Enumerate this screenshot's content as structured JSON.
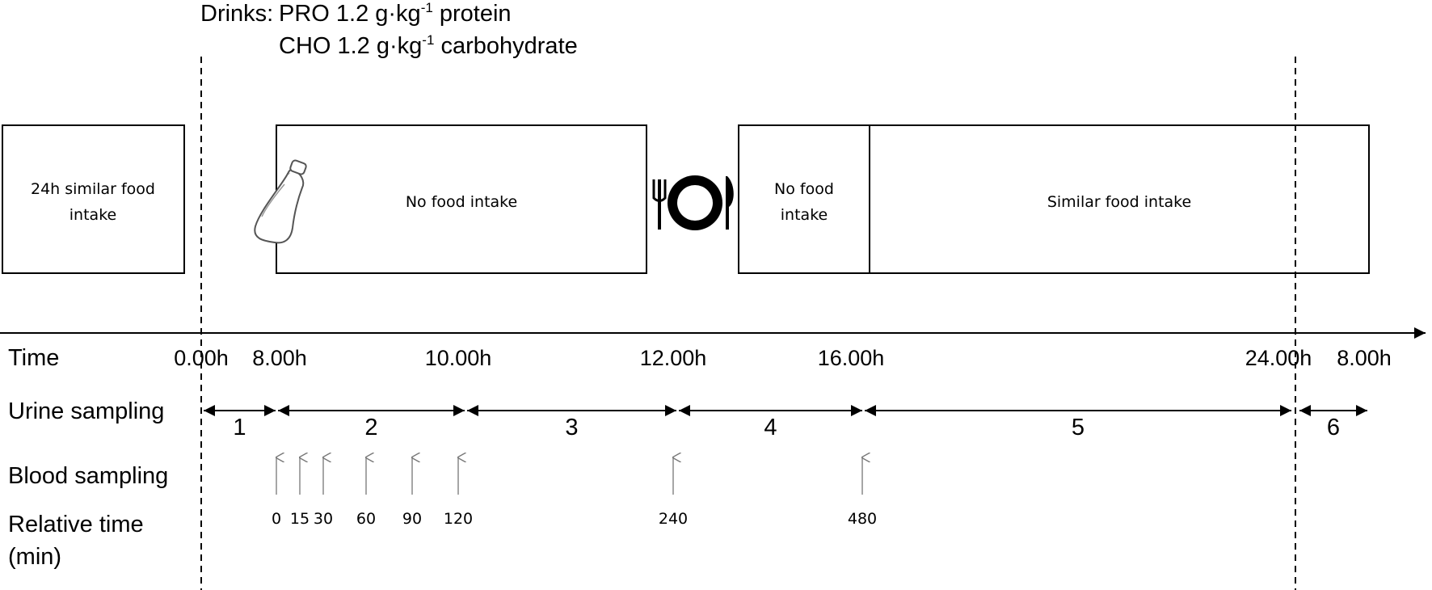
{
  "drinks": {
    "label": "Drinks:",
    "pro_text": "PRO 1.2 g·kg",
    "pro_sup": "-1",
    "pro_tail": " protein",
    "cho_text": "CHO 1.2 g·kg",
    "cho_sup": "-1",
    "cho_tail": " carbohydrate"
  },
  "boxes": {
    "box1_line1": "24h similar food",
    "box1_line2": "intake",
    "box2": "No food intake",
    "box3_line1": "No food",
    "box3_line2": "intake",
    "box4": "Similar food intake"
  },
  "icons": {
    "bottle": "drink-bottle-icon",
    "meal": "plate-cutlery-icon"
  },
  "rows": {
    "time": "Time",
    "urine": "Urine sampling",
    "blood": "Blood sampling",
    "relative_line1": "Relative time",
    "relative_line2": "(min)"
  },
  "time_labels": [
    "0.00h",
    "8.00h",
    "10.00h",
    "12.00h",
    "16.00h",
    "24.00h",
    "8.00h"
  ],
  "urine_periods": [
    "1",
    "2",
    "3",
    "4",
    "5",
    "6"
  ],
  "relative_times": [
    "0",
    "15",
    "30",
    "60",
    "90",
    "120",
    "240",
    "480"
  ]
}
